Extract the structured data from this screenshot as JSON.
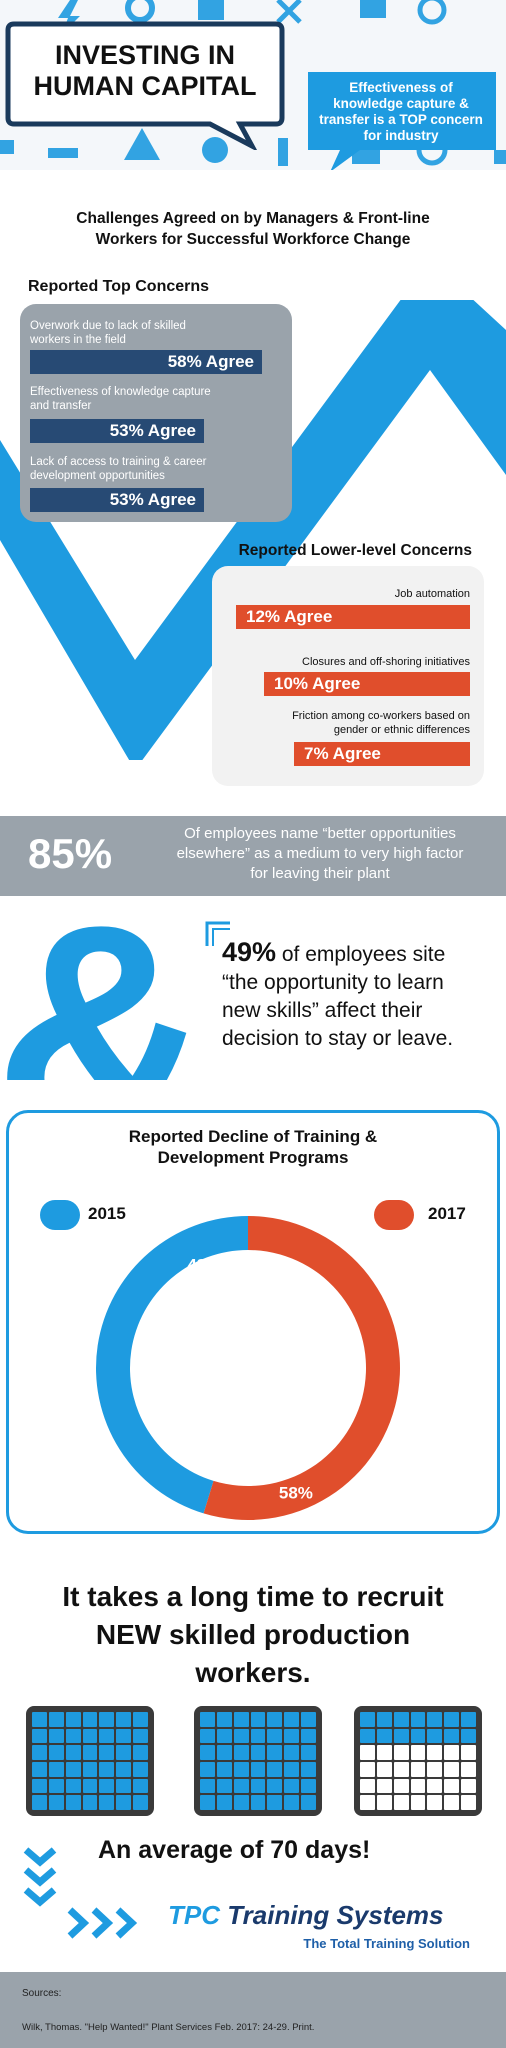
{
  "header": {
    "title_line1": "INVESTING IN",
    "title_line2": "HUMAN CAPITAL",
    "callout": "Effectiveness of knowledge capture & transfer is a TOP concern for industry"
  },
  "challenges_title_line1": "Challenges Agreed on by Managers & Front-line",
  "challenges_title_line2": "Workers for Successful Workforce Change",
  "top_concerns": {
    "heading": "Reported Top Concerns",
    "items": [
      {
        "label_line1": "Overwork due to lack of skilled",
        "label_line2": "workers in the field",
        "value": "58% Agree",
        "pct": 58
      },
      {
        "label_line1": "Effectiveness of knowledge capture",
        "label_line2": "and transfer",
        "value": "53% Agree",
        "pct": 53
      },
      {
        "label_line1": "Lack of access to training & career",
        "label_line2": "development opportunities",
        "value": "53% Agree",
        "pct": 53
      }
    ]
  },
  "lower_concerns": {
    "heading": "Reported Lower-level Concerns",
    "items": [
      {
        "label_line1": "Job automation",
        "label_line2": "",
        "value": "12% Agree",
        "pct": 12
      },
      {
        "label_line1": "Closures and off-shoring initiatives",
        "label_line2": "",
        "value": "10% Agree",
        "pct": 10
      },
      {
        "label_line1": "Friction among co-workers based on",
        "label_line2": "gender or ethnic differences",
        "value": "7% Agree",
        "pct": 7
      }
    ]
  },
  "stat85": {
    "value": "85%",
    "line1": "Of employees name “better opportunities",
    "line2": "elsewhere” as a medium to very high factor",
    "line3": "for leaving their plant"
  },
  "stat49": {
    "value": "49%",
    "line1": " of employees site",
    "line2": "“the opportunity to learn",
    "line3": "new skills” affect their",
    "line4": "decision to stay or leave."
  },
  "chart_data": {
    "type": "pie",
    "title": "Reported Decline of Training & Development Programs",
    "title_line1": "Reported Decline of Training &",
    "title_line2": "Development Programs",
    "legend": [
      "2015",
      "2017"
    ],
    "slices": [
      {
        "name": "2015",
        "value": 48,
        "label": "48%",
        "color": "#1e9be0"
      },
      {
        "name": "2017",
        "value": 58,
        "label": "58%",
        "color": "#e04e2c"
      }
    ]
  },
  "recruit": {
    "line1": "It takes a long time to recruit",
    "line2": "NEW skilled production",
    "line3": "workers.",
    "average": "An average of 70 days!"
  },
  "brand": {
    "tpc": "TPC",
    "name": " Training Systems",
    "tagline": "The Total Training Solution"
  },
  "sources": {
    "label": "Sources:",
    "citation": "Wilk, Thomas. \"Help Wanted!\" Plant Services Feb. 2017: 24-29. Print."
  },
  "colors": {
    "blue": "#1e9be0",
    "navy": "#274a74",
    "red": "#e04e2c",
    "gray": "#9aa3ab"
  }
}
